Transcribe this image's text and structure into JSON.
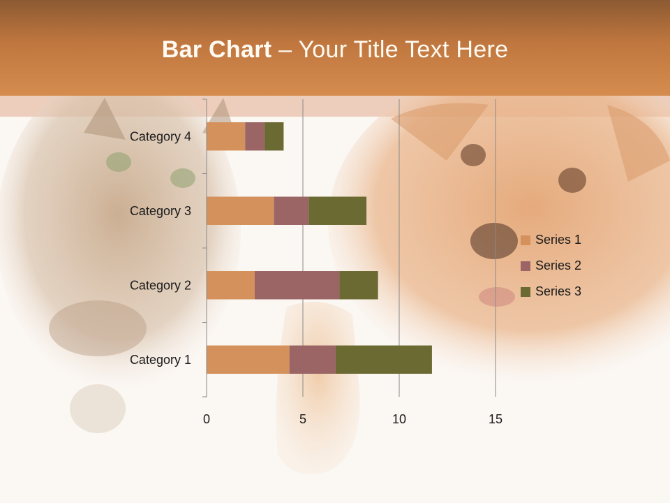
{
  "slide": {
    "title_bold": "Bar Chart",
    "title_rest": " – Your Title Text Here"
  },
  "chart_data": {
    "type": "bar",
    "orientation": "horizontal",
    "stacked": true,
    "categories": [
      "Category 1",
      "Category 2",
      "Category 3",
      "Category 4"
    ],
    "series": [
      {
        "name": "Series 1",
        "values": [
          4.3,
          2.5,
          3.5,
          2.0
        ],
        "color": "#d4915b"
      },
      {
        "name": "Series 2",
        "values": [
          2.4,
          4.4,
          1.8,
          1.0
        ],
        "color": "#9b6565"
      },
      {
        "name": "Series 3",
        "values": [
          5.0,
          2.0,
          3.0,
          1.0
        ],
        "color": "#6b6a33"
      }
    ],
    "xlim": [
      0,
      15
    ],
    "xticks": [
      "0",
      "5",
      "10",
      "15"
    ],
    "grid": true,
    "legend": "right"
  }
}
